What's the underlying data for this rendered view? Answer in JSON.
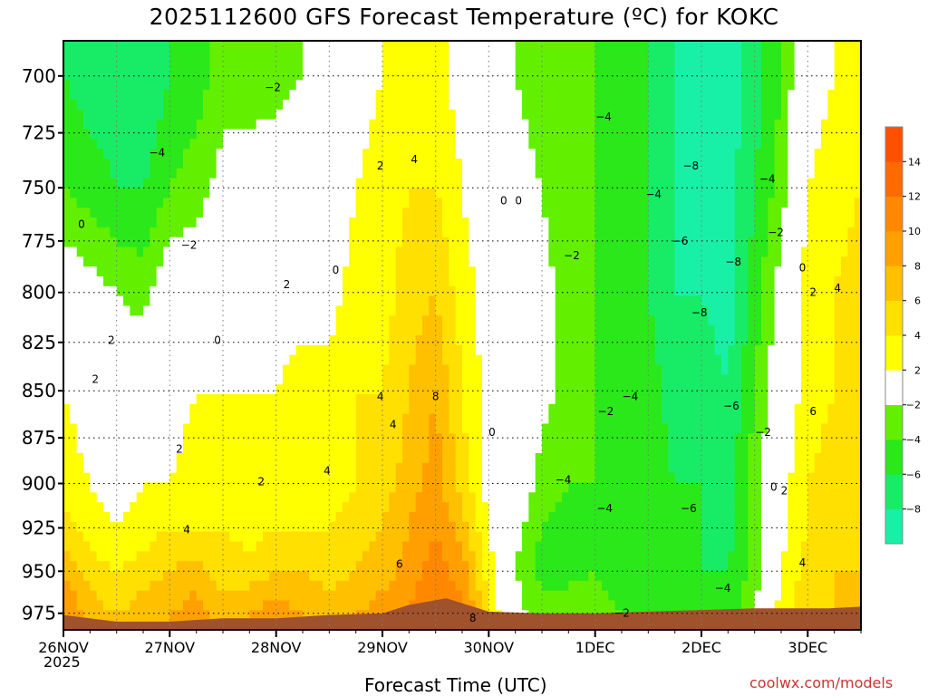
{
  "title": "2025112600 GFS Forecast Temperature (ºC) for KOKC",
  "credit": "coolwx.com/models",
  "chart_data": {
    "type": "heatmap",
    "title": "2025112600 GFS Forecast Temperature (ºC) for KOKC",
    "xlabel": "Forecast Time (UTC)",
    "year_label": "2025",
    "x_ticks": [
      "26NOV",
      "27NOV",
      "28NOV",
      "29NOV",
      "30NOV",
      "1DEC",
      "2DEC",
      "3DEC"
    ],
    "x_range_days": [
      0,
      7.5
    ],
    "y_ticks": [
      700,
      725,
      750,
      775,
      800,
      825,
      850,
      875,
      900,
      925,
      950,
      975
    ],
    "ylim": [
      985,
      685
    ],
    "y_scale": "log",
    "grid": true,
    "colorbar": {
      "ticks": [
        "14",
        "12",
        "10",
        "8",
        "6",
        "4",
        "2",
        "−2",
        "−4",
        "−6",
        "−8"
      ],
      "bands": [
        {
          "min": -10,
          "max": -8,
          "color": "#18f0a8"
        },
        {
          "min": -8,
          "max": -6,
          "color": "#18ec66"
        },
        {
          "min": -6,
          "max": -4,
          "color": "#2ae81a"
        },
        {
          "min": -4,
          "max": -2,
          "color": "#62f000"
        },
        {
          "min": -2,
          "max": 2,
          "color": "#ffffff"
        },
        {
          "min": 2,
          "max": 4,
          "color": "#ffff00"
        },
        {
          "min": 4,
          "max": 6,
          "color": "#ffe000"
        },
        {
          "min": 6,
          "max": 8,
          "color": "#ffc000"
        },
        {
          "min": 8,
          "max": 10,
          "color": "#ffa000"
        },
        {
          "min": 10,
          "max": 12,
          "color": "#ff8800"
        },
        {
          "min": 12,
          "max": 14,
          "color": "#ff6a00"
        },
        {
          "min": 14,
          "max": 16,
          "color": "#ff5000"
        }
      ]
    },
    "profiles": [
      {
        "day": 0.0,
        "temps": [
          -6,
          -4,
          0,
          2,
          3,
          5,
          8,
          10
        ]
      },
      {
        "day": 0.25,
        "temps": [
          -7,
          -5,
          -1,
          1,
          2,
          3,
          5,
          7
        ]
      },
      {
        "day": 0.5,
        "temps": [
          -7,
          -6,
          -2,
          0,
          1,
          2,
          4,
          6
        ]
      },
      {
        "day": 0.75,
        "temps": [
          -8,
          -6,
          -3,
          1,
          2,
          3,
          5,
          7
        ]
      },
      {
        "day": 1.0,
        "temps": [
          -6,
          -4,
          0,
          1,
          2,
          4,
          6,
          8
        ]
      },
      {
        "day": 1.25,
        "temps": [
          -5,
          -3,
          0,
          2,
          3,
          4,
          7,
          9
        ]
      },
      {
        "day": 1.5,
        "temps": [
          -3,
          -1,
          0,
          2,
          3,
          4,
          5,
          7
        ]
      },
      {
        "day": 1.75,
        "temps": [
          -3,
          -1,
          0,
          2,
          2,
          3,
          5,
          8
        ]
      },
      {
        "day": 2.0,
        "temps": [
          -3,
          0,
          1,
          2,
          3,
          4,
          6,
          9
        ]
      },
      {
        "day": 2.25,
        "temps": [
          -2,
          0,
          1,
          3,
          3,
          4,
          6,
          8
        ]
      },
      {
        "day": 2.5,
        "temps": [
          -1,
          0,
          1,
          3,
          3,
          4,
          5,
          7
        ]
      },
      {
        "day": 2.75,
        "temps": [
          1,
          2,
          3,
          4,
          4,
          5,
          6,
          8
        ]
      },
      {
        "day": 3.0,
        "temps": [
          2,
          3,
          3,
          4,
          5,
          6,
          7,
          9
        ]
      },
      {
        "day": 3.25,
        "temps": [
          3,
          4,
          5,
          6,
          7,
          8,
          9,
          10
        ]
      },
      {
        "day": 3.5,
        "temps": [
          3,
          4,
          6,
          8,
          9,
          10,
          11,
          12
        ]
      },
      {
        "day": 3.75,
        "temps": [
          1,
          2,
          3,
          4,
          5,
          7,
          9,
          11
        ]
      },
      {
        "day": 4.0,
        "temps": [
          -1,
          0,
          1,
          1,
          1,
          2,
          3,
          4
        ]
      },
      {
        "day": 4.25,
        "temps": [
          -2,
          -1,
          0,
          1,
          0,
          -1,
          -2,
          -1
        ]
      },
      {
        "day": 4.5,
        "temps": [
          -3,
          -2,
          -1,
          -1,
          -3,
          -4,
          -5,
          -3
        ]
      },
      {
        "day": 4.75,
        "temps": [
          -4,
          -4,
          -3,
          -3,
          -4,
          -5,
          -5,
          -2
        ]
      },
      {
        "day": 5.0,
        "temps": [
          -4,
          -4,
          -4,
          -4,
          -4,
          -4,
          -4,
          -3
        ]
      },
      {
        "day": 5.25,
        "temps": [
          -5,
          -5,
          -5,
          -5,
          -5,
          -5,
          -5,
          -4
        ]
      },
      {
        "day": 5.5,
        "temps": [
          -6,
          -6,
          -6,
          -5,
          -5,
          -6,
          -6,
          -5
        ]
      },
      {
        "day": 5.75,
        "temps": [
          -8,
          -8,
          -8,
          -7,
          -6,
          -6,
          -6,
          -5
        ]
      },
      {
        "day": 6.0,
        "temps": [
          -9,
          -9,
          -8,
          -7,
          -6,
          -6,
          -6,
          -5
        ]
      },
      {
        "day": 6.25,
        "temps": [
          -9,
          -9,
          -9,
          -8,
          -7,
          -7,
          -6,
          -5
        ]
      },
      {
        "day": 6.5,
        "temps": [
          -7,
          -6,
          -5,
          -4,
          -3,
          -3,
          -3,
          -2
        ]
      },
      {
        "day": 6.75,
        "temps": [
          -4,
          -3,
          -1,
          0,
          1,
          1,
          2,
          3
        ]
      },
      {
        "day": 7.0,
        "temps": [
          1,
          2,
          3,
          3,
          4,
          4,
          5,
          5
        ]
      },
      {
        "day": 7.25,
        "temps": [
          2,
          3,
          4,
          4,
          5,
          5,
          6,
          6
        ]
      },
      {
        "day": 7.5,
        "temps": [
          3,
          4,
          5,
          5,
          6,
          6,
          6,
          6
        ]
      }
    ],
    "profile_levels": [
      700,
      750,
      800,
      850,
      900,
      925,
      950,
      975
    ],
    "terrain_top_hpa": [
      976,
      980,
      980,
      978,
      978,
      976,
      975,
      970,
      966,
      970,
      974,
      975,
      975,
      974,
      973,
      972,
      972,
      972,
      971
    ],
    "terrain_days": [
      0.0,
      0.5,
      1.0,
      1.5,
      2.0,
      2.5,
      3.0,
      3.25,
      3.6,
      3.8,
      4.0,
      4.5,
      5.0,
      5.5,
      6.0,
      6.5,
      6.9,
      7.2,
      7.5
    ],
    "contour_labels": [
      {
        "text": "−2",
        "day": 1.97,
        "hpa": 705
      },
      {
        "text": "−4",
        "day": 0.88,
        "hpa": 734
      },
      {
        "text": "−2",
        "day": 1.18,
        "hpa": 777
      },
      {
        "text": "0",
        "day": 0.17,
        "hpa": 767
      },
      {
        "text": "0",
        "day": 2.56,
        "hpa": 789
      },
      {
        "text": "0",
        "day": 1.45,
        "hpa": 824
      },
      {
        "text": "2",
        "day": 2.1,
        "hpa": 796
      },
      {
        "text": "2",
        "day": 0.45,
        "hpa": 824
      },
      {
        "text": "2",
        "day": 0.3,
        "hpa": 844
      },
      {
        "text": "2",
        "day": 1.09,
        "hpa": 881
      },
      {
        "text": "2",
        "day": 1.86,
        "hpa": 899
      },
      {
        "text": "2",
        "day": 2.98,
        "hpa": 740
      },
      {
        "text": "4",
        "day": 3.3,
        "hpa": 737
      },
      {
        "text": "4",
        "day": 2.48,
        "hpa": 893
      },
      {
        "text": "4",
        "day": 2.98,
        "hpa": 853
      },
      {
        "text": "4",
        "day": 3.1,
        "hpa": 868
      },
      {
        "text": "4",
        "day": 1.16,
        "hpa": 926
      },
      {
        "text": "6",
        "day": 3.16,
        "hpa": 946
      },
      {
        "text": "8",
        "day": 3.5,
        "hpa": 853
      },
      {
        "text": "8",
        "day": 3.85,
        "hpa": 978
      },
      {
        "text": "0",
        "day": 4.14,
        "hpa": 756
      },
      {
        "text": "0",
        "day": 4.28,
        "hpa": 756
      },
      {
        "text": "0",
        "day": 4.03,
        "hpa": 872
      },
      {
        "text": "−4",
        "day": 5.08,
        "hpa": 718
      },
      {
        "text": "−2",
        "day": 4.78,
        "hpa": 782
      },
      {
        "text": "−4",
        "day": 5.55,
        "hpa": 753
      },
      {
        "text": "−6",
        "day": 5.8,
        "hpa": 775
      },
      {
        "text": "−8",
        "day": 5.9,
        "hpa": 740
      },
      {
        "text": "−8",
        "day": 6.3,
        "hpa": 785
      },
      {
        "text": "−8",
        "day": 5.98,
        "hpa": 810
      },
      {
        "text": "−4",
        "day": 6.62,
        "hpa": 746
      },
      {
        "text": "−2",
        "day": 6.7,
        "hpa": 771
      },
      {
        "text": "0",
        "day": 6.95,
        "hpa": 788
      },
      {
        "text": "2",
        "day": 7.05,
        "hpa": 800
      },
      {
        "text": "4",
        "day": 7.28,
        "hpa": 798
      },
      {
        "text": "6",
        "day": 7.05,
        "hpa": 861
      },
      {
        "text": "−4",
        "day": 5.33,
        "hpa": 853
      },
      {
        "text": "−2",
        "day": 5.1,
        "hpa": 861
      },
      {
        "text": "−6",
        "day": 6.28,
        "hpa": 858
      },
      {
        "text": "−2",
        "day": 6.58,
        "hpa": 872
      },
      {
        "text": "−4",
        "day": 4.7,
        "hpa": 898
      },
      {
        "text": "−4",
        "day": 5.09,
        "hpa": 914
      },
      {
        "text": "−6",
        "day": 5.88,
        "hpa": 914
      },
      {
        "text": "0",
        "day": 6.68,
        "hpa": 902
      },
      {
        "text": "2",
        "day": 6.78,
        "hpa": 904
      },
      {
        "text": "4",
        "day": 6.95,
        "hpa": 945
      },
      {
        "text": "−4",
        "day": 6.2,
        "hpa": 960
      },
      {
        "text": "−2",
        "day": 5.25,
        "hpa": 975
      }
    ]
  }
}
